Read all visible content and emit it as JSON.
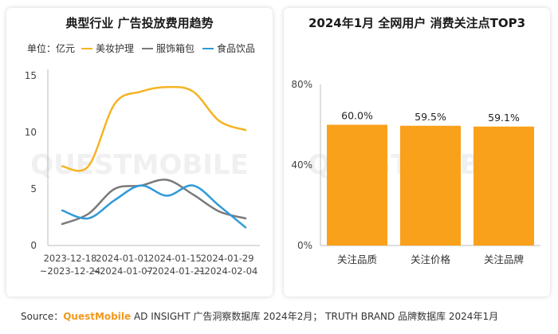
{
  "chart_data": [
    {
      "type": "line",
      "title": "典型行业 广告投放费用趋势",
      "unit_label": "单位：亿元",
      "x_tick_labels": [
        {
          "line1": "2023-12-18",
          "line2": "~2023-12-24"
        },
        {
          "line1": "2024-01-01",
          "line2": "~2024-01-07"
        },
        {
          "line1": "2024-01-15",
          "line2": "~2024-01-21"
        },
        {
          "line1": "2024-01-29",
          "line2": "~2024-02-04"
        }
      ],
      "x": [
        0,
        1,
        2,
        3,
        4,
        5,
        6,
        7
      ],
      "ylim": [
        0,
        15
      ],
      "yticks": [
        "0",
        "5",
        "10",
        "15"
      ],
      "grid": false,
      "legend_position": "top",
      "series": [
        {
          "name": "美妆护理",
          "color": "#f5b423",
          "values": [
            7.0,
            7.0,
            12.5,
            13.6,
            14.0,
            13.6,
            11.0,
            10.2
          ]
        },
        {
          "name": "服饰箱包",
          "color": "#7a7a7a",
          "values": [
            1.9,
            2.8,
            5.0,
            5.3,
            5.8,
            4.5,
            3.0,
            2.4
          ]
        },
        {
          "name": "食品饮品",
          "color": "#2f9ad8",
          "values": [
            3.1,
            2.4,
            4.0,
            5.3,
            4.4,
            5.3,
            3.5,
            1.6
          ]
        }
      ]
    },
    {
      "type": "bar",
      "title": "2024年1月 全网用户 消费关注点TOP3",
      "categories": [
        "关注品质",
        "关注价格",
        "关注品牌"
      ],
      "values": [
        60.0,
        59.5,
        59.1
      ],
      "value_labels": [
        "60.0%",
        "59.5%",
        "59.1%"
      ],
      "ylim": [
        0,
        80
      ],
      "yticks": [
        "0%",
        "40%",
        "80%"
      ],
      "bar_color": "#f9a11b",
      "grid": false
    }
  ],
  "watermark": "QUESTMOBILE",
  "source": {
    "prefix": "Source：",
    "brand": "QuestMobile",
    "rest": " AD INSIGHT 广告洞察数据库 2024年2月； TRUTH BRAND 品牌数据库 2024年1月"
  }
}
